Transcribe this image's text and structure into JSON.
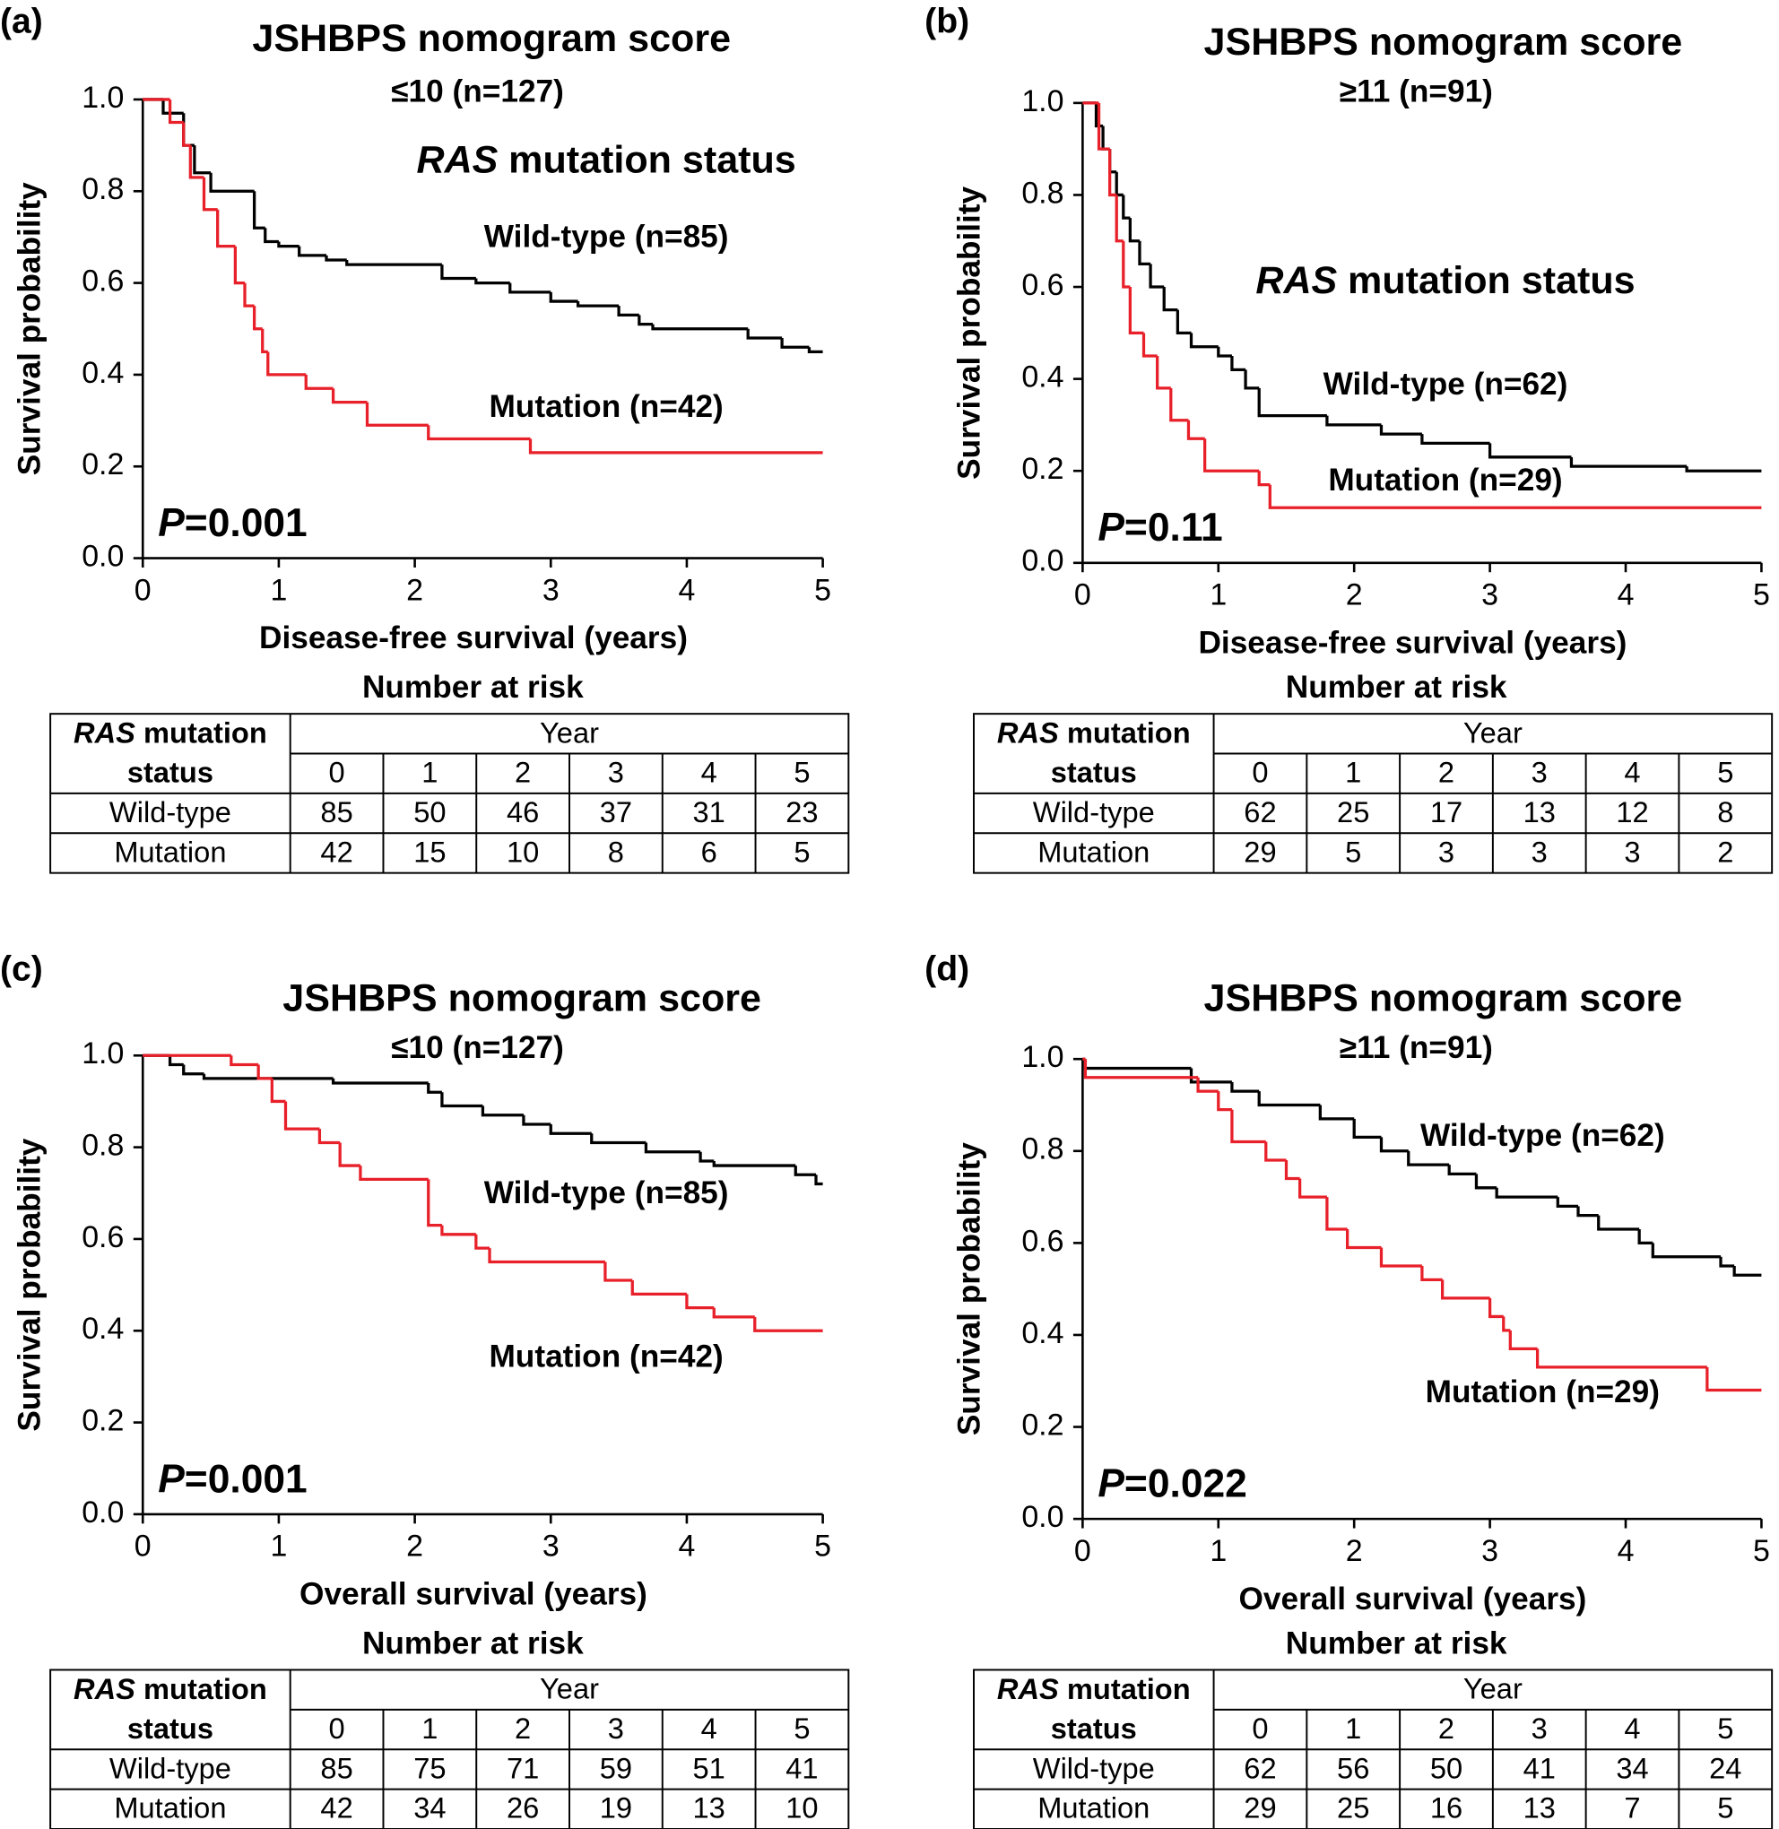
{
  "chart_data": [
    {
      "type": "line",
      "step": "post",
      "panel": "(a)",
      "title": "JSHBPS nomogram score",
      "subtitle": "≤10 (n=127)",
      "legend_title": [
        "RAS",
        "mutation status"
      ],
      "p_label": [
        "P",
        "=0.001"
      ],
      "xlabel": "Disease-free survival (years)",
      "ylabel": "Survival probability",
      "xlim": [
        0,
        5
      ],
      "ylim": [
        0,
        1
      ],
      "xticks": [
        0,
        1,
        2,
        3,
        4,
        5
      ],
      "yticks": [
        {
          "value": 0,
          "label": "0.0"
        },
        {
          "value": 0.2,
          "label": "0.2"
        },
        {
          "value": 0.4,
          "label": "0.4"
        },
        {
          "value": 0.6,
          "label": "0.6"
        },
        {
          "value": 0.8,
          "label": "0.8"
        },
        {
          "value": 1,
          "label": "1.0"
        }
      ],
      "series": [
        {
          "name": "Wild-type (n=85)",
          "color": "#000000",
          "x": [
            0,
            0.15,
            0.3,
            0.38,
            0.5,
            0.82,
            0.9,
            1.0,
            1.15,
            1.35,
            1.5,
            2.2,
            2.45,
            2.7,
            3.0,
            3.2,
            3.5,
            3.65,
            3.75,
            4.45,
            4.7,
            4.9,
            5
          ],
          "values": [
            1,
            0.97,
            0.9,
            0.84,
            0.8,
            0.72,
            0.69,
            0.68,
            0.66,
            0.65,
            0.64,
            0.61,
            0.6,
            0.58,
            0.56,
            0.55,
            0.53,
            0.51,
            0.5,
            0.48,
            0.46,
            0.45,
            0.45
          ]
        },
        {
          "name": "Mutation (n=42)",
          "color": "#e8202a",
          "x": [
            0,
            0.2,
            0.3,
            0.35,
            0.45,
            0.55,
            0.68,
            0.75,
            0.82,
            0.88,
            0.92,
            1.2,
            1.4,
            1.65,
            2.1,
            2.85,
            5
          ],
          "values": [
            1,
            0.95,
            0.9,
            0.83,
            0.76,
            0.68,
            0.6,
            0.55,
            0.5,
            0.45,
            0.4,
            0.37,
            0.34,
            0.29,
            0.26,
            0.23,
            0.23
          ]
        }
      ],
      "risk_table": {
        "title": "Number at risk",
        "group_header": [
          "RAS",
          "mutation",
          "status"
        ],
        "year_label": "Year",
        "years": [
          0,
          1,
          2,
          3,
          4,
          5
        ],
        "rows": [
          {
            "name": "Wild-type",
            "values": [
              85,
              50,
              46,
              37,
              31,
              23
            ]
          },
          {
            "name": "Mutation",
            "values": [
              42,
              15,
              10,
              8,
              6,
              5
            ]
          }
        ]
      }
    },
    {
      "type": "line",
      "step": "post",
      "panel": "(b)",
      "title": "JSHBPS nomogram score",
      "subtitle": "≥11 (n=91)",
      "legend_title": [
        "RAS",
        "mutation status"
      ],
      "p_label": [
        "P",
        "=0.11"
      ],
      "xlabel": "Disease-free survival (years)",
      "ylabel": "Survival probability",
      "xlim": [
        0,
        5
      ],
      "ylim": [
        0,
        1
      ],
      "xticks": [
        0,
        1,
        2,
        3,
        4,
        5
      ],
      "yticks": [
        {
          "value": 0,
          "label": "0.0"
        },
        {
          "value": 0.2,
          "label": "0.2"
        },
        {
          "value": 0.4,
          "label": "0.4"
        },
        {
          "value": 0.6,
          "label": "0.6"
        },
        {
          "value": 0.8,
          "label": "0.8"
        },
        {
          "value": 1,
          "label": "1.0"
        }
      ],
      "series": [
        {
          "name": "Wild-type (n=62)",
          "color": "#000000",
          "x": [
            0,
            0.1,
            0.15,
            0.2,
            0.25,
            0.3,
            0.35,
            0.42,
            0.5,
            0.6,
            0.7,
            0.8,
            1.0,
            1.1,
            1.2,
            1.3,
            1.8,
            2.2,
            2.5,
            3.0,
            3.6,
            4.45,
            5
          ],
          "values": [
            1,
            0.95,
            0.9,
            0.85,
            0.8,
            0.75,
            0.7,
            0.65,
            0.6,
            0.55,
            0.5,
            0.47,
            0.45,
            0.42,
            0.38,
            0.32,
            0.3,
            0.28,
            0.26,
            0.23,
            0.21,
            0.2,
            0.2
          ]
        },
        {
          "name": "Mutation (n=29)",
          "color": "#e8202a",
          "x": [
            0,
            0.12,
            0.2,
            0.25,
            0.3,
            0.35,
            0.45,
            0.55,
            0.65,
            0.78,
            0.9,
            1.3,
            1.38,
            5
          ],
          "values": [
            1,
            0.9,
            0.8,
            0.7,
            0.6,
            0.5,
            0.45,
            0.38,
            0.31,
            0.27,
            0.2,
            0.17,
            0.12,
            0.12
          ]
        }
      ],
      "risk_table": {
        "title": "Number at risk",
        "group_header": [
          "RAS",
          "mutation",
          "status"
        ],
        "year_label": "Year",
        "years": [
          0,
          1,
          2,
          3,
          4,
          5
        ],
        "rows": [
          {
            "name": "Wild-type",
            "values": [
              62,
              25,
              17,
              13,
              12,
              8
            ]
          },
          {
            "name": "Mutation",
            "values": [
              29,
              5,
              3,
              3,
              3,
              2
            ]
          }
        ]
      }
    },
    {
      "type": "line",
      "step": "post",
      "panel": "(c)",
      "title": "JSHBPS nomogram score",
      "subtitle": "≤10 (n=127)",
      "p_label": [
        "P",
        "=0.001"
      ],
      "xlabel": "Overall survival (years)",
      "ylabel": "Survival probability",
      "xlim": [
        0,
        5
      ],
      "ylim": [
        0,
        1
      ],
      "xticks": [
        0,
        1,
        2,
        3,
        4,
        5
      ],
      "yticks": [
        {
          "value": 0,
          "label": "0.0"
        },
        {
          "value": 0.2,
          "label": "0.2"
        },
        {
          "value": 0.4,
          "label": "0.4"
        },
        {
          "value": 0.6,
          "label": "0.6"
        },
        {
          "value": 0.8,
          "label": "0.8"
        },
        {
          "value": 1,
          "label": "1.0"
        }
      ],
      "series": [
        {
          "name": "Wild-type (n=85)",
          "color": "#000000",
          "x": [
            0,
            0.2,
            0.3,
            0.45,
            1.4,
            2.1,
            2.2,
            2.5,
            2.8,
            3.0,
            3.3,
            3.7,
            4.1,
            4.2,
            4.8,
            4.95,
            5
          ],
          "values": [
            1,
            0.98,
            0.96,
            0.95,
            0.94,
            0.92,
            0.89,
            0.87,
            0.85,
            0.83,
            0.81,
            0.79,
            0.77,
            0.76,
            0.74,
            0.72,
            0.72
          ]
        },
        {
          "name": "Mutation (n=42)",
          "color": "#e8202a",
          "x": [
            0,
            0.65,
            0.85,
            0.95,
            1.05,
            1.3,
            1.45,
            1.6,
            2.1,
            2.2,
            2.45,
            2.55,
            3.4,
            3.6,
            4.0,
            4.2,
            4.5,
            5
          ],
          "values": [
            1,
            0.98,
            0.95,
            0.9,
            0.84,
            0.81,
            0.76,
            0.73,
            0.63,
            0.61,
            0.58,
            0.55,
            0.51,
            0.48,
            0.45,
            0.43,
            0.4,
            0.4
          ]
        }
      ],
      "risk_table": {
        "title": "Number at risk",
        "group_header": [
          "RAS",
          "mutation",
          "status"
        ],
        "year_label": "Year",
        "years": [
          0,
          1,
          2,
          3,
          4,
          5
        ],
        "rows": [
          {
            "name": "Wild-type",
            "values": [
              85,
              75,
              71,
              59,
              51,
              41
            ]
          },
          {
            "name": "Mutation",
            "values": [
              42,
              34,
              26,
              19,
              13,
              10
            ]
          }
        ]
      }
    },
    {
      "type": "line",
      "step": "post",
      "panel": "(d)",
      "title": "JSHBPS nomogram score",
      "subtitle": "≥11 (n=91)",
      "p_label": [
        "P",
        "=0.022"
      ],
      "xlabel": "Overall survival (years)",
      "ylabel": "Survival probability",
      "xlim": [
        0,
        5
      ],
      "ylim": [
        0,
        1
      ],
      "xticks": [
        0,
        1,
        2,
        3,
        4,
        5
      ],
      "yticks": [
        {
          "value": 0,
          "label": "0.0"
        },
        {
          "value": 0.2,
          "label": "0.2"
        },
        {
          "value": 0.4,
          "label": "0.4"
        },
        {
          "value": 0.6,
          "label": "0.6"
        },
        {
          "value": 0.8,
          "label": "0.8"
        },
        {
          "value": 1,
          "label": "1.0"
        }
      ],
      "series": [
        {
          "name": "Wild-type (n=62)",
          "color": "#000000",
          "x": [
            0,
            0.02,
            0.8,
            1.1,
            1.3,
            1.75,
            2.0,
            2.2,
            2.4,
            2.7,
            2.9,
            3.05,
            3.5,
            3.65,
            3.8,
            4.1,
            4.2,
            4.7,
            4.8,
            5
          ],
          "values": [
            1,
            0.98,
            0.95,
            0.93,
            0.9,
            0.87,
            0.83,
            0.8,
            0.77,
            0.75,
            0.72,
            0.7,
            0.68,
            0.66,
            0.63,
            0.6,
            0.57,
            0.55,
            0.53,
            0.53
          ]
        },
        {
          "name": "Mutation (n=29)",
          "color": "#e8202a",
          "x": [
            0,
            0.02,
            0.85,
            1.0,
            1.1,
            1.35,
            1.5,
            1.6,
            1.8,
            1.95,
            2.2,
            2.5,
            2.65,
            3.0,
            3.1,
            3.15,
            3.35,
            4.6,
            5
          ],
          "values": [
            1,
            0.96,
            0.93,
            0.89,
            0.82,
            0.78,
            0.74,
            0.7,
            0.63,
            0.59,
            0.55,
            0.52,
            0.48,
            0.44,
            0.41,
            0.37,
            0.33,
            0.28,
            0.28
          ]
        }
      ],
      "risk_table": {
        "title": "Number at risk",
        "group_header": [
          "RAS",
          "mutation",
          "status"
        ],
        "year_label": "Year",
        "years": [
          0,
          1,
          2,
          3,
          4,
          5
        ],
        "rows": [
          {
            "name": "Wild-type",
            "values": [
              62,
              56,
              50,
              41,
              34,
              24
            ]
          },
          {
            "name": "Mutation",
            "values": [
              29,
              25,
              16,
              13,
              7,
              5
            ]
          }
        ]
      }
    }
  ]
}
